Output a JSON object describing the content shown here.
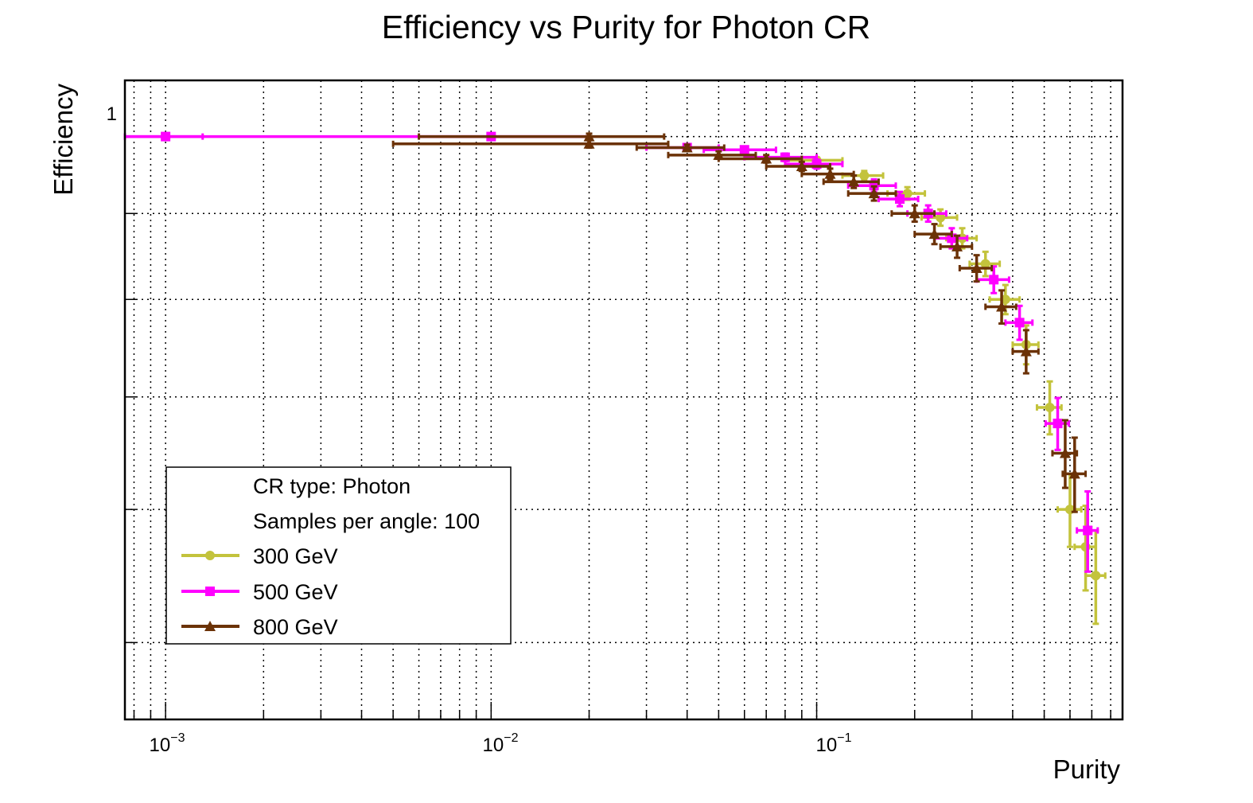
{
  "chart_data": {
    "type": "scatter",
    "title": "Efficiency vs Purity for Photon CR",
    "xlabel": "Purity",
    "ylabel": "Efficiency",
    "xscale": "log",
    "yscale": "log",
    "xlim": [
      0.00075,
      0.87
    ],
    "ylim": [
      0.45,
      1.08
    ],
    "grid": true,
    "x_ticks": [
      {
        "base": "10",
        "exp": "−3",
        "value": 0.001
      },
      {
        "base": "10",
        "exp": "−2",
        "value": 0.01
      },
      {
        "base": "10",
        "exp": "−1",
        "value": 0.1
      }
    ],
    "y_ticks": [
      {
        "label": "1",
        "value": 1
      }
    ],
    "legend": {
      "position": "bottom-left",
      "header_lines": [
        "CR type: Photon",
        "Samples per angle: 100"
      ],
      "entries": [
        "300 GeV",
        "500 GeV",
        "800 GeV"
      ]
    },
    "series": [
      {
        "name": "300 GeV",
        "color": "#c3c33c",
        "marker": "circle",
        "points": [
          {
            "x": 0.1,
            "y": 0.968,
            "xerr": 0.02,
            "yerr": 0.004
          },
          {
            "x": 0.14,
            "y": 0.948,
            "xerr": 0.02,
            "yerr": 0.006
          },
          {
            "x": 0.19,
            "y": 0.925,
            "xerr": 0.025,
            "yerr": 0.008
          },
          {
            "x": 0.24,
            "y": 0.895,
            "xerr": 0.03,
            "yerr": 0.01
          },
          {
            "x": 0.28,
            "y": 0.87,
            "xerr": 0.03,
            "yerr": 0.012
          },
          {
            "x": 0.33,
            "y": 0.84,
            "xerr": 0.035,
            "yerr": 0.014
          },
          {
            "x": 0.38,
            "y": 0.8,
            "xerr": 0.04,
            "yerr": 0.016
          },
          {
            "x": 0.44,
            "y": 0.752,
            "xerr": 0.04,
            "yerr": 0.02
          },
          {
            "x": 0.52,
            "y": 0.69,
            "xerr": 0.045,
            "yerr": 0.025
          },
          {
            "x": 0.6,
            "y": 0.6,
            "xerr": 0.05,
            "yerr": 0.03
          },
          {
            "x": 0.67,
            "y": 0.57,
            "xerr": 0.05,
            "yerr": 0.033
          },
          {
            "x": 0.72,
            "y": 0.548,
            "xerr": 0.05,
            "yerr": 0.035
          }
        ]
      },
      {
        "name": "500 GeV",
        "color": "#ff00ff",
        "marker": "square",
        "points": [
          {
            "x": 0.001,
            "y": 1.0,
            "xerr": 0.0003,
            "yerr": 0.0
          },
          {
            "x": 0.01,
            "y": 1.0,
            "xerr": 0.01,
            "yerr": 0.002
          },
          {
            "x": 0.04,
            "y": 0.985,
            "xerr": 0.01,
            "yerr": 0.004
          },
          {
            "x": 0.06,
            "y": 0.982,
            "xerr": 0.015,
            "yerr": 0.004
          },
          {
            "x": 0.08,
            "y": 0.972,
            "xerr": 0.02,
            "yerr": 0.005
          },
          {
            "x": 0.1,
            "y": 0.963,
            "xerr": 0.02,
            "yerr": 0.006
          },
          {
            "x": 0.15,
            "y": 0.935,
            "xerr": 0.025,
            "yerr": 0.008
          },
          {
            "x": 0.18,
            "y": 0.918,
            "xerr": 0.025,
            "yerr": 0.009
          },
          {
            "x": 0.22,
            "y": 0.9,
            "xerr": 0.03,
            "yerr": 0.01
          },
          {
            "x": 0.26,
            "y": 0.87,
            "xerr": 0.03,
            "yerr": 0.012
          },
          {
            "x": 0.35,
            "y": 0.822,
            "xerr": 0.04,
            "yerr": 0.015
          },
          {
            "x": 0.42,
            "y": 0.775,
            "xerr": 0.04,
            "yerr": 0.018
          },
          {
            "x": 0.55,
            "y": 0.675,
            "xerr": 0.045,
            "yerr": 0.024
          },
          {
            "x": 0.68,
            "y": 0.583,
            "xerr": 0.05,
            "yerr": 0.032
          }
        ]
      },
      {
        "name": "800 GeV",
        "color": "#6b3207",
        "marker": "triangle",
        "points": [
          {
            "x": 0.02,
            "y": 1.0,
            "xerr": 0.014,
            "yerr": 0.004
          },
          {
            "x": 0.02,
            "y": 0.99,
            "xerr": 0.015,
            "yerr": 0.005
          },
          {
            "x": 0.04,
            "y": 0.985,
            "xerr": 0.012,
            "yerr": 0.004
          },
          {
            "x": 0.05,
            "y": 0.975,
            "xerr": 0.015,
            "yerr": 0.005
          },
          {
            "x": 0.07,
            "y": 0.97,
            "xerr": 0.02,
            "yerr": 0.005
          },
          {
            "x": 0.09,
            "y": 0.96,
            "xerr": 0.02,
            "yerr": 0.006
          },
          {
            "x": 0.11,
            "y": 0.95,
            "xerr": 0.02,
            "yerr": 0.007
          },
          {
            "x": 0.13,
            "y": 0.94,
            "xerr": 0.025,
            "yerr": 0.008
          },
          {
            "x": 0.15,
            "y": 0.925,
            "xerr": 0.025,
            "yerr": 0.009
          },
          {
            "x": 0.2,
            "y": 0.9,
            "xerr": 0.03,
            "yerr": 0.01
          },
          {
            "x": 0.23,
            "y": 0.875,
            "xerr": 0.03,
            "yerr": 0.012
          },
          {
            "x": 0.27,
            "y": 0.86,
            "xerr": 0.03,
            "yerr": 0.013
          },
          {
            "x": 0.31,
            "y": 0.835,
            "xerr": 0.035,
            "yerr": 0.015
          },
          {
            "x": 0.37,
            "y": 0.792,
            "xerr": 0.04,
            "yerr": 0.018
          },
          {
            "x": 0.44,
            "y": 0.745,
            "xerr": 0.04,
            "yerr": 0.022
          },
          {
            "x": 0.58,
            "y": 0.648,
            "xerr": 0.05,
            "yerr": 0.03
          },
          {
            "x": 0.62,
            "y": 0.63,
            "xerr": 0.05,
            "yerr": 0.032
          }
        ]
      }
    ]
  }
}
